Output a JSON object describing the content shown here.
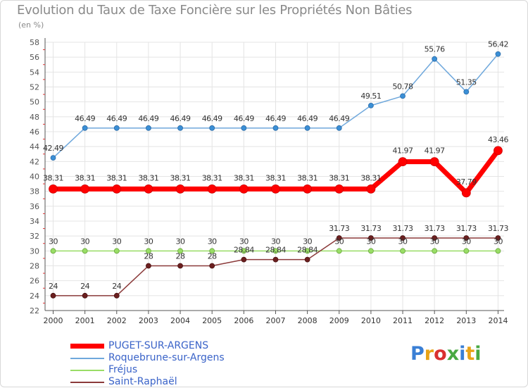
{
  "chart_data": {
    "type": "line",
    "title": "Evolution du Taux de Taxe Foncière sur les Propriétés Non Bâties",
    "ylabel": "(en %)",
    "xlabel": "",
    "ylim": [
      22,
      58
    ],
    "yticks": [
      22,
      24,
      26,
      28,
      30,
      32,
      34,
      36,
      38,
      40,
      42,
      44,
      46,
      48,
      50,
      52,
      54,
      56,
      58
    ],
    "x": [
      "2000",
      "2001",
      "2002",
      "2003",
      "2004",
      "2005",
      "2006",
      "2007",
      "2008",
      "2009",
      "2010",
      "2011",
      "2012",
      "2013",
      "2014"
    ],
    "grid": true,
    "series": [
      {
        "name": "PUGET-SUR-ARGENS",
        "color": "#ff0000",
        "values": [
          38.31,
          38.31,
          38.31,
          38.31,
          38.31,
          38.31,
          38.31,
          38.31,
          38.31,
          38.31,
          38.31,
          41.97,
          41.97,
          37.79,
          43.46
        ],
        "labels": [
          "38.31",
          "38.31",
          "38.31",
          "38.31",
          "38.31",
          "38.31",
          "38.31",
          "38.31",
          "38.31",
          "38.31",
          "38.31",
          "41.97",
          "41.97",
          "37.79",
          "43.46"
        ]
      },
      {
        "name": "Roquebrune-sur-Argens",
        "color": "#6fa8dc",
        "values": [
          42.49,
          46.49,
          46.49,
          46.49,
          46.49,
          46.49,
          46.49,
          46.49,
          46.49,
          46.49,
          49.51,
          50.78,
          55.76,
          51.35,
          56.42
        ],
        "labels": [
          "42.49",
          "46.49",
          "46.49",
          "46.49",
          "46.49",
          "46.49",
          "46.49",
          "46.49",
          "46.49",
          "46.49",
          "49.51",
          "50.78",
          "55.76",
          "51.35",
          "56.42"
        ]
      },
      {
        "name": "Fréjus",
        "color": "#99dd66",
        "values": [
          30,
          30,
          30,
          30,
          30,
          30,
          30,
          30,
          30,
          30,
          30,
          30,
          30,
          30,
          30
        ],
        "labels": [
          "30",
          "30",
          "30",
          "30",
          "30",
          "30",
          "30",
          "30",
          "30",
          "30",
          "30",
          "30",
          "30",
          "30",
          "30"
        ]
      },
      {
        "name": "Saint-Raphaël",
        "color": "#8b3a3a",
        "values": [
          24,
          24,
          24,
          28,
          28,
          28,
          28.84,
          28.84,
          28.84,
          31.73,
          31.73,
          31.73,
          31.73,
          31.73,
          31.73
        ],
        "labels": [
          "24",
          "24",
          "24",
          "28",
          "28",
          "28",
          "28.84",
          "28.84",
          "28.84",
          "31.73",
          "31.73",
          "31.73",
          "31.73",
          "31.73",
          "31.73"
        ]
      }
    ]
  },
  "legend": {
    "items": [
      "PUGET-SUR-ARGENS",
      "Roquebrune-sur-Argens",
      "Fréjus",
      "Saint-Raphaël"
    ]
  },
  "logo": {
    "text": "Proxiti",
    "colors": [
      "#3a7fd5",
      "#e8a317",
      "#d93030",
      "#49a942",
      "#3a7fd5",
      "#e8a317",
      "#49a942"
    ]
  }
}
